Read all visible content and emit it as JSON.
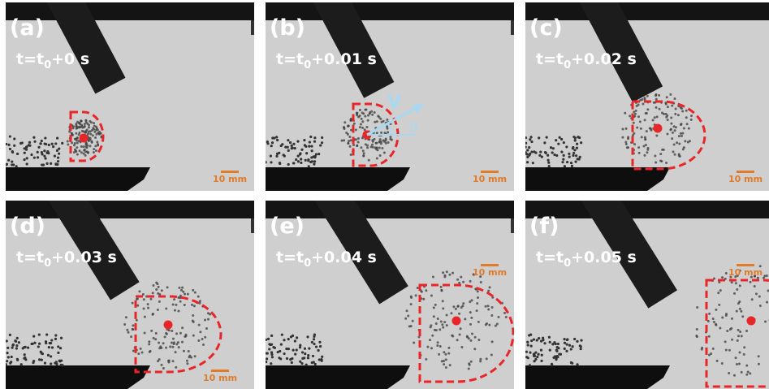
{
  "panels": [
    {
      "label": "(a)",
      "time": {
        "prefix": "t=t",
        "sub": "0",
        "suffix": "+0 s"
      },
      "scale": "10 mm"
    },
    {
      "label": "(b)",
      "time": {
        "prefix": "t=t",
        "sub": "0",
        "suffix": "+0.01 s"
      },
      "scale": "10 mm",
      "velocity": "V",
      "angle": "θ"
    },
    {
      "label": "(c)",
      "time": {
        "prefix": "t=t",
        "sub": "0",
        "suffix": "+0.02 s"
      },
      "scale": "10 mm"
    },
    {
      "label": "(d)",
      "time": {
        "prefix": "t=t",
        "sub": "0",
        "suffix": "+0.03 s"
      },
      "scale": "10 mm"
    },
    {
      "label": "(e)",
      "time": {
        "prefix": "t=t",
        "sub": "0",
        "suffix": "+0.04 s"
      },
      "scale": "10 mm"
    },
    {
      "label": "(f)",
      "time": {
        "prefix": "t=t",
        "sub": "0",
        "suffix": "+0.05 s"
      },
      "scale": "10 mm"
    }
  ]
}
